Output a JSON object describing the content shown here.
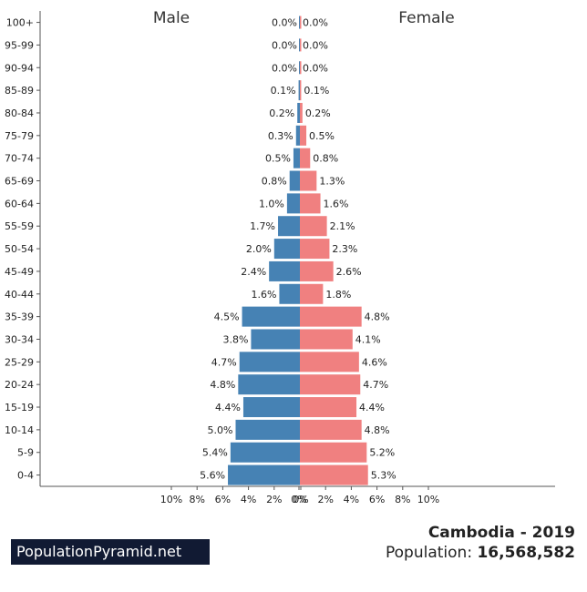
{
  "chart_data": {
    "type": "bar",
    "orientation": "horizontal-pyramid",
    "categories": [
      "0-4",
      "5-9",
      "10-14",
      "15-19",
      "20-24",
      "25-29",
      "30-34",
      "35-39",
      "40-44",
      "45-49",
      "50-54",
      "55-59",
      "60-64",
      "65-69",
      "70-74",
      "75-79",
      "80-84",
      "85-89",
      "90-94",
      "95-99",
      "100+"
    ],
    "series": [
      {
        "name": "Male",
        "values": [
          5.6,
          5.4,
          5.0,
          4.4,
          4.8,
          4.7,
          3.8,
          4.5,
          1.6,
          2.4,
          2.0,
          1.7,
          1.0,
          0.8,
          0.5,
          0.3,
          0.2,
          0.1,
          0.0,
          0.0,
          0.0
        ],
        "color": "#4682b4"
      },
      {
        "name": "Female",
        "values": [
          5.3,
          5.2,
          4.8,
          4.4,
          4.7,
          4.6,
          4.1,
          4.8,
          1.8,
          2.6,
          2.3,
          2.1,
          1.6,
          1.3,
          0.8,
          0.5,
          0.2,
          0.1,
          0.0,
          0.0,
          0.0
        ],
        "color": "#f08080"
      }
    ],
    "value_labels": {
      "male": [
        "5.6%",
        "5.4%",
        "5.0%",
        "4.4%",
        "4.8%",
        "4.7%",
        "3.8%",
        "4.5%",
        "1.6%",
        "2.4%",
        "2.0%",
        "1.7%",
        "1.0%",
        "0.8%",
        "0.5%",
        "0.3%",
        "0.2%",
        "0.1%",
        "0.0%",
        "0.0%",
        "0.0%"
      ],
      "female": [
        "5.3%",
        "5.2%",
        "4.8%",
        "4.4%",
        "4.7%",
        "4.6%",
        "4.1%",
        "4.8%",
        "1.8%",
        "2.6%",
        "2.3%",
        "2.1%",
        "1.6%",
        "1.3%",
        "0.8%",
        "0.5%",
        "0.2%",
        "0.1%",
        "0.0%",
        "0.0%",
        "0.0%"
      ]
    },
    "x_ticks": [
      "10%",
      "8%",
      "6%",
      "4%",
      "2%",
      "0%",
      "0%",
      "2%",
      "4%",
      "6%",
      "8%",
      "10%"
    ],
    "xlim": [
      -10,
      10
    ],
    "grid": false,
    "title": "",
    "xlabel": "",
    "ylabel": ""
  },
  "footer": {
    "brand": "PopulationPyramid.net",
    "country_year": "Cambodia - 2019",
    "population_label": "Population: ",
    "population_value": "16,568,582"
  }
}
